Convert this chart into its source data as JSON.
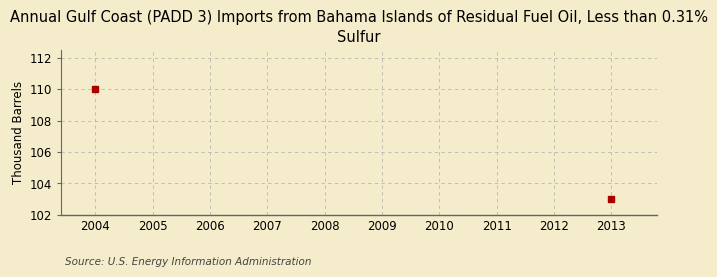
{
  "title": "Annual Gulf Coast (PADD 3) Imports from Bahama Islands of Residual Fuel Oil, Less than 0.31%\nSulfur",
  "ylabel": "Thousand Barrels",
  "source": "Source: U.S. Energy Information Administration",
  "background_color": "#f5eccb",
  "data_x": [
    2004,
    2013
  ],
  "data_y": [
    110,
    103
  ],
  "xlim": [
    2003.4,
    2013.8
  ],
  "ylim": [
    102,
    112.5
  ],
  "yticks": [
    102,
    104,
    106,
    108,
    110,
    112
  ],
  "xticks": [
    2004,
    2005,
    2006,
    2007,
    2008,
    2009,
    2010,
    2011,
    2012,
    2013
  ],
  "grid_color": "#aaaaaa",
  "spine_color": "#666666",
  "title_fontsize": 10.5,
  "label_fontsize": 8.5,
  "tick_fontsize": 8.5,
  "source_fontsize": 7.5,
  "marker_size": 4,
  "marker_color": "#aa0000"
}
